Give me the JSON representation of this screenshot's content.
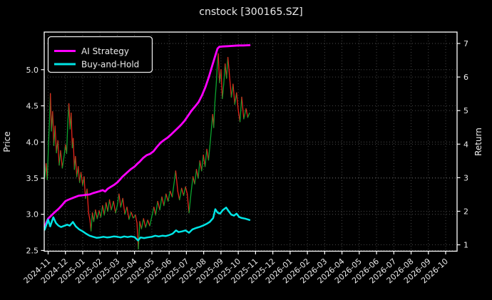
{
  "chart_data": {
    "type": "line",
    "title": "cnstock [300165.SZ]",
    "grid": true,
    "legend": {
      "position": "upper-left",
      "entries": [
        {
          "label": "AI Strategy",
          "color": "#ff00ff"
        },
        {
          "label": "Buy-and-Hold",
          "color": "#00e5e5"
        }
      ]
    },
    "left_axis": {
      "label": "Price",
      "ticks": [
        2.5,
        3.0,
        3.5,
        4.0,
        4.5,
        5.0
      ],
      "range": [
        2.49,
        5.52
      ]
    },
    "right_axis": {
      "label": "Return",
      "ticks": [
        1,
        2,
        3,
        4,
        5,
        6,
        7
      ],
      "range": [
        0.81,
        7.34
      ]
    },
    "x_axis": {
      "tick_rotation": -42,
      "tick_labels": [
        "2024-11",
        "2024-12",
        "2025-01",
        "2025-02",
        "2025-03",
        "2025-04",
        "2025-05",
        "2025-06",
        "2025-07",
        "2025-08",
        "2025-09",
        "2025-10",
        "2025-11",
        "2025-12",
        "2026-01",
        "2026-02",
        "2026-03",
        "2026-04",
        "2026-05",
        "2026-06",
        "2026-07",
        "2026-08",
        "2026-09",
        "2026-10"
      ]
    },
    "colors": {
      "background": "#000000",
      "spine": "#ffffff",
      "grid": "#4f4f4f",
      "text": "#eaeaea",
      "price_up": "#0ca32e",
      "price_down": "#e8241c",
      "ai_strategy": "#ff00ff",
      "buy_and_hold": "#00e5e5"
    },
    "series": [
      {
        "name": "Price",
        "axis": "left",
        "style": "updown_colored_line",
        "points": [
          [
            -0.2,
            3.5
          ],
          [
            -0.12,
            3.7
          ],
          [
            -0.05,
            3.48
          ],
          [
            0.02,
            3.95
          ],
          [
            0.08,
            4.3
          ],
          [
            0.13,
            4.67
          ],
          [
            0.19,
            4.15
          ],
          [
            0.26,
            4.42
          ],
          [
            0.33,
            3.95
          ],
          [
            0.4,
            4.22
          ],
          [
            0.48,
            3.85
          ],
          [
            0.56,
            4.02
          ],
          [
            0.64,
            3.68
          ],
          [
            0.72,
            3.88
          ],
          [
            0.82,
            3.64
          ],
          [
            0.92,
            3.8
          ],
          [
            1.0,
            3.96
          ],
          [
            1.07,
            3.84
          ],
          [
            1.14,
            4.28
          ],
          [
            1.2,
            4.53
          ],
          [
            1.27,
            4.18
          ],
          [
            1.33,
            4.4
          ],
          [
            1.4,
            3.92
          ],
          [
            1.45,
            4.05
          ],
          [
            1.52,
            3.62
          ],
          [
            1.58,
            3.8
          ],
          [
            1.66,
            3.52
          ],
          [
            1.74,
            3.66
          ],
          [
            1.82,
            3.44
          ],
          [
            1.9,
            3.58
          ],
          [
            2.0,
            3.4
          ],
          [
            2.08,
            3.52
          ],
          [
            2.16,
            3.22
          ],
          [
            2.25,
            3.35
          ],
          [
            2.34,
            3.02
          ],
          [
            2.42,
            2.92
          ],
          [
            2.48,
            2.77
          ],
          [
            2.56,
            3.02
          ],
          [
            2.64,
            2.9
          ],
          [
            2.74,
            3.06
          ],
          [
            2.84,
            2.94
          ],
          [
            2.95,
            3.05
          ],
          [
            3.05,
            2.96
          ],
          [
            3.15,
            3.12
          ],
          [
            3.25,
            2.99
          ],
          [
            3.35,
            3.16
          ],
          [
            3.45,
            3.04
          ],
          [
            3.55,
            3.2
          ],
          [
            3.65,
            3.06
          ],
          [
            3.78,
            3.18
          ],
          [
            3.9,
            3.02
          ],
          [
            4.0,
            3.12
          ],
          [
            4.1,
            3.28
          ],
          [
            4.2,
            3.1
          ],
          [
            4.32,
            3.22
          ],
          [
            4.44,
            3.0
          ],
          [
            4.56,
            3.1
          ],
          [
            4.68,
            2.93
          ],
          [
            4.8,
            3.03
          ],
          [
            4.92,
            2.95
          ],
          [
            5.05,
            2.99
          ],
          [
            5.14,
            2.88
          ],
          [
            5.22,
            2.52
          ],
          [
            5.3,
            2.9
          ],
          [
            5.4,
            2.8
          ],
          [
            5.52,
            2.94
          ],
          [
            5.64,
            2.82
          ],
          [
            5.76,
            2.92
          ],
          [
            5.88,
            2.84
          ],
          [
            6.0,
            2.97
          ],
          [
            6.12,
            3.1
          ],
          [
            6.22,
            2.99
          ],
          [
            6.34,
            3.18
          ],
          [
            6.46,
            3.06
          ],
          [
            6.58,
            3.24
          ],
          [
            6.7,
            3.12
          ],
          [
            6.82,
            3.28
          ],
          [
            6.94,
            3.18
          ],
          [
            7.06,
            3.32
          ],
          [
            7.18,
            3.24
          ],
          [
            7.28,
            3.42
          ],
          [
            7.38,
            3.6
          ],
          [
            7.5,
            3.32
          ],
          [
            7.6,
            3.2
          ],
          [
            7.72,
            3.36
          ],
          [
            7.84,
            3.26
          ],
          [
            7.95,
            3.38
          ],
          [
            8.05,
            3.28
          ],
          [
            8.15,
            3.02
          ],
          [
            8.28,
            3.32
          ],
          [
            8.38,
            3.52
          ],
          [
            8.48,
            3.42
          ],
          [
            8.58,
            3.62
          ],
          [
            8.68,
            3.5
          ],
          [
            8.78,
            3.74
          ],
          [
            8.88,
            3.6
          ],
          [
            8.98,
            3.82
          ],
          [
            9.08,
            3.66
          ],
          [
            9.18,
            3.9
          ],
          [
            9.28,
            3.75
          ],
          [
            9.38,
            4.0
          ],
          [
            9.46,
            4.22
          ],
          [
            9.52,
            4.38
          ],
          [
            9.58,
            4.2
          ],
          [
            9.65,
            4.55
          ],
          [
            9.72,
            4.78
          ],
          [
            9.78,
            5.02
          ],
          [
            9.84,
            5.22
          ],
          [
            9.92,
            4.82
          ],
          [
            10.0,
            5.0
          ],
          [
            10.08,
            4.6
          ],
          [
            10.16,
            4.8
          ],
          [
            10.24,
            5.08
          ],
          [
            10.32,
            4.88
          ],
          [
            10.4,
            5.17
          ],
          [
            10.5,
            4.9
          ],
          [
            10.6,
            4.62
          ],
          [
            10.7,
            4.8
          ],
          [
            10.8,
            4.52
          ],
          [
            10.9,
            4.68
          ],
          [
            11.0,
            4.44
          ],
          [
            11.1,
            4.28
          ],
          [
            11.2,
            4.62
          ],
          [
            11.32,
            4.32
          ],
          [
            11.45,
            4.46
          ],
          [
            11.55,
            4.34
          ],
          [
            11.65,
            4.4
          ]
        ]
      },
      {
        "name": "AI Strategy",
        "axis": "right",
        "style": "line",
        "color": "#ff00ff",
        "width": 2.8,
        "points": [
          [
            -0.2,
            1.55
          ],
          [
            0.0,
            1.78
          ],
          [
            0.2,
            1.88
          ],
          [
            0.4,
            1.98
          ],
          [
            0.6,
            2.07
          ],
          [
            0.8,
            2.18
          ],
          [
            1.0,
            2.3
          ],
          [
            1.15,
            2.34
          ],
          [
            1.3,
            2.37
          ],
          [
            1.45,
            2.4
          ],
          [
            1.6,
            2.43
          ],
          [
            1.75,
            2.46
          ],
          [
            1.9,
            2.47
          ],
          [
            2.05,
            2.48
          ],
          [
            2.2,
            2.49
          ],
          [
            2.4,
            2.5
          ],
          [
            2.6,
            2.54
          ],
          [
            2.8,
            2.57
          ],
          [
            3.0,
            2.6
          ],
          [
            3.15,
            2.63
          ],
          [
            3.3,
            2.59
          ],
          [
            3.45,
            2.67
          ],
          [
            3.6,
            2.72
          ],
          [
            3.8,
            2.78
          ],
          [
            4.0,
            2.86
          ],
          [
            4.15,
            2.94
          ],
          [
            4.3,
            3.03
          ],
          [
            4.45,
            3.1
          ],
          [
            4.6,
            3.17
          ],
          [
            4.8,
            3.26
          ],
          [
            5.0,
            3.33
          ],
          [
            5.15,
            3.41
          ],
          [
            5.3,
            3.48
          ],
          [
            5.5,
            3.59
          ],
          [
            5.7,
            3.67
          ],
          [
            5.9,
            3.71
          ],
          [
            6.1,
            3.79
          ],
          [
            6.3,
            3.92
          ],
          [
            6.5,
            4.04
          ],
          [
            6.7,
            4.12
          ],
          [
            6.9,
            4.19
          ],
          [
            7.1,
            4.28
          ],
          [
            7.3,
            4.38
          ],
          [
            7.5,
            4.48
          ],
          [
            7.7,
            4.58
          ],
          [
            7.9,
            4.7
          ],
          [
            8.1,
            4.85
          ],
          [
            8.3,
            5.0
          ],
          [
            8.5,
            5.12
          ],
          [
            8.7,
            5.25
          ],
          [
            8.9,
            5.45
          ],
          [
            9.1,
            5.7
          ],
          [
            9.3,
            6.0
          ],
          [
            9.5,
            6.35
          ],
          [
            9.65,
            6.6
          ],
          [
            9.8,
            6.85
          ],
          [
            9.9,
            6.9
          ],
          [
            10.1,
            6.91
          ],
          [
            10.4,
            6.92
          ],
          [
            10.7,
            6.93
          ],
          [
            11.0,
            6.94
          ],
          [
            11.3,
            6.94
          ],
          [
            11.65,
            6.95
          ]
        ]
      },
      {
        "name": "Buy-and-Hold",
        "axis": "right",
        "style": "line",
        "color": "#00e5e5",
        "width": 2.5,
        "points": [
          [
            -0.2,
            1.45
          ],
          [
            0.0,
            1.75
          ],
          [
            0.12,
            1.55
          ],
          [
            0.3,
            1.82
          ],
          [
            0.45,
            1.65
          ],
          [
            0.6,
            1.57
          ],
          [
            0.75,
            1.53
          ],
          [
            0.9,
            1.56
          ],
          [
            1.1,
            1.6
          ],
          [
            1.25,
            1.57
          ],
          [
            1.43,
            1.68
          ],
          [
            1.6,
            1.55
          ],
          [
            1.8,
            1.46
          ],
          [
            2.0,
            1.4
          ],
          [
            2.2,
            1.33
          ],
          [
            2.4,
            1.27
          ],
          [
            2.6,
            1.24
          ],
          [
            2.8,
            1.21
          ],
          [
            3.0,
            1.22
          ],
          [
            3.2,
            1.24
          ],
          [
            3.4,
            1.22
          ],
          [
            3.6,
            1.23
          ],
          [
            3.8,
            1.25
          ],
          [
            4.0,
            1.24
          ],
          [
            4.2,
            1.22
          ],
          [
            4.4,
            1.25
          ],
          [
            4.6,
            1.23
          ],
          [
            4.8,
            1.25
          ],
          [
            5.0,
            1.23
          ],
          [
            5.2,
            1.13
          ],
          [
            5.35,
            1.22
          ],
          [
            5.55,
            1.2
          ],
          [
            5.75,
            1.22
          ],
          [
            6.0,
            1.24
          ],
          [
            6.2,
            1.27
          ],
          [
            6.4,
            1.25
          ],
          [
            6.6,
            1.27
          ],
          [
            6.8,
            1.26
          ],
          [
            7.0,
            1.29
          ],
          [
            7.2,
            1.33
          ],
          [
            7.4,
            1.43
          ],
          [
            7.55,
            1.38
          ],
          [
            7.75,
            1.4
          ],
          [
            7.95,
            1.43
          ],
          [
            8.15,
            1.36
          ],
          [
            8.35,
            1.46
          ],
          [
            8.55,
            1.5
          ],
          [
            8.75,
            1.53
          ],
          [
            8.95,
            1.57
          ],
          [
            9.15,
            1.62
          ],
          [
            9.35,
            1.68
          ],
          [
            9.55,
            1.8
          ],
          [
            9.67,
            2.06
          ],
          [
            9.8,
            1.96
          ],
          [
            9.95,
            1.93
          ],
          [
            10.1,
            2.03
          ],
          [
            10.3,
            2.11
          ],
          [
            10.45,
            2.0
          ],
          [
            10.6,
            1.9
          ],
          [
            10.75,
            1.87
          ],
          [
            10.9,
            1.93
          ],
          [
            11.05,
            1.83
          ],
          [
            11.2,
            1.8
          ],
          [
            11.4,
            1.78
          ],
          [
            11.65,
            1.74
          ]
        ]
      }
    ]
  }
}
